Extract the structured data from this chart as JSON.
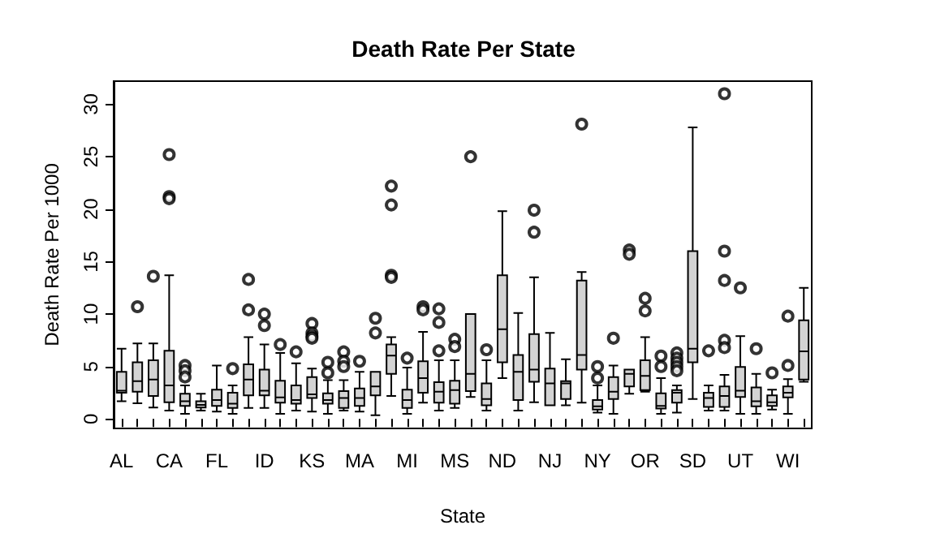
{
  "chart_data": {
    "type": "box",
    "title": "Death Rate Per State",
    "xlabel": "State",
    "ylabel": "Death Rate Per 1000",
    "categories": [
      "AL",
      null,
      null,
      "CA",
      null,
      null,
      "FL",
      null,
      null,
      "ID",
      null,
      null,
      "KS",
      null,
      null,
      "MA",
      null,
      null,
      "MI",
      null,
      null,
      "MS",
      null,
      null,
      "ND",
      null,
      null,
      "NJ",
      null,
      null,
      "NY",
      null,
      null,
      "OR",
      null,
      null,
      "SD",
      null,
      null,
      "UT",
      null,
      null,
      "WI",
      null
    ],
    "ylim": [
      -0.9,
      32.2
    ],
    "yticks": [
      0,
      5,
      10,
      15,
      20,
      25,
      30
    ],
    "grid": false,
    "color": "#d3d3d3",
    "marker": "circle",
    "boxes": [
      {
        "low": 1.7,
        "q1": 2.5,
        "median": 2.7,
        "q3": 4.5,
        "high": 6.7
      },
      {
        "low": 1.5,
        "q1": 2.6,
        "median": 3.6,
        "q3": 5.4,
        "high": 7.2,
        "outliers": [
          10.7
        ]
      },
      {
        "low": 1.1,
        "q1": 2.2,
        "median": 3.75,
        "q3": 5.6,
        "high": 7.2,
        "outliers": [
          13.6
        ]
      },
      {
        "low": 0.8,
        "q1": 1.6,
        "median": 3.2,
        "q3": 6.5,
        "high": 13.7,
        "outliers": [
          25.2,
          21.2,
          21.0
        ]
      },
      {
        "low": 0.5,
        "q1": 1.25,
        "median": 1.7,
        "q3": 2.4,
        "high": 3.2,
        "outliers": [
          5.1,
          4.6,
          4.0
        ]
      },
      {
        "low": 0.8,
        "q1": 1.1,
        "median": 1.35,
        "q3": 1.7,
        "high": 2.4
      },
      {
        "low": 0.7,
        "q1": 1.25,
        "median": 1.8,
        "q3": 2.8,
        "high": 5.1
      },
      {
        "low": 0.5,
        "q1": 1.05,
        "median": 1.45,
        "q3": 2.5,
        "high": 3.2,
        "outliers": [
          4.8
        ]
      },
      {
        "low": 1.05,
        "q1": 2.25,
        "median": 3.75,
        "q3": 5.2,
        "high": 7.8,
        "outliers": [
          13.3,
          10.4
        ]
      },
      {
        "low": 1.05,
        "q1": 2.25,
        "median": 2.7,
        "q3": 4.7,
        "high": 7.1,
        "outliers": [
          10.0,
          8.9
        ]
      },
      {
        "low": 0.5,
        "q1": 1.55,
        "median": 2.05,
        "q3": 3.65,
        "high": 6.3,
        "outliers": [
          7.1
        ]
      },
      {
        "low": 0.8,
        "q1": 1.45,
        "median": 1.8,
        "q3": 3.2,
        "high": 5.3,
        "outliers": [
          6.4
        ]
      },
      {
        "low": 0.7,
        "q1": 2.0,
        "median": 2.35,
        "q3": 4.0,
        "high": 4.8,
        "outliers": [
          9.1,
          8.2,
          7.9,
          7.7
        ]
      },
      {
        "low": 0.5,
        "q1": 1.45,
        "median": 1.8,
        "q3": 2.45,
        "high": 3.7,
        "outliers": [
          5.4,
          4.4
        ]
      },
      {
        "low": 0.8,
        "q1": 1.05,
        "median": 2.0,
        "q3": 2.65,
        "high": 3.7,
        "outliers": [
          6.4,
          5.5,
          5.0
        ]
      },
      {
        "low": 0.7,
        "q1": 1.25,
        "median": 2.0,
        "q3": 2.9,
        "high": 4.5,
        "outliers": [
          5.5
        ]
      },
      {
        "low": 0.35,
        "q1": 2.25,
        "median": 3.1,
        "q3": 4.5,
        "high": 4.5,
        "outliers": [
          9.6,
          8.2
        ]
      },
      {
        "low": 2.2,
        "q1": 4.3,
        "median": 6.05,
        "q3": 7.1,
        "high": 7.8,
        "outliers": [
          22.2,
          20.4,
          13.7,
          13.5
        ]
      },
      {
        "low": 0.5,
        "q1": 1.05,
        "median": 1.8,
        "q3": 2.8,
        "high": 4.9,
        "outliers": [
          5.8
        ]
      },
      {
        "low": 1.55,
        "q1": 2.5,
        "median": 3.9,
        "q3": 5.5,
        "high": 8.3,
        "outliers": [
          10.7,
          10.4
        ]
      },
      {
        "low": 0.8,
        "q1": 1.55,
        "median": 2.6,
        "q3": 3.5,
        "high": 5.6,
        "outliers": [
          10.5,
          9.2,
          6.5
        ]
      },
      {
        "low": 1.05,
        "q1": 1.45,
        "median": 2.75,
        "q3": 3.65,
        "high": 5.6,
        "outliers": [
          7.6,
          6.9
        ]
      },
      {
        "low": 2.1,
        "q1": 2.65,
        "median": 4.3,
        "q3": 10.0,
        "high": 10.0,
        "outliers": [
          25.0
        ]
      },
      {
        "low": 0.8,
        "q1": 1.3,
        "median": 1.9,
        "q3": 3.4,
        "high": 5.6,
        "outliers": [
          6.6
        ]
      },
      {
        "low": 3.9,
        "q1": 5.4,
        "median": 8.55,
        "q3": 13.7,
        "high": 19.8
      },
      {
        "low": 0.8,
        "q1": 1.8,
        "median": 4.5,
        "q3": 6.1,
        "high": 10.1
      },
      {
        "low": 1.6,
        "q1": 3.55,
        "median": 4.7,
        "q3": 8.1,
        "high": 13.5,
        "outliers": [
          19.9,
          17.8
        ]
      },
      {
        "low": 1.3,
        "q1": 1.3,
        "median": 3.4,
        "q3": 4.8,
        "high": 8.2
      },
      {
        "low": 1.3,
        "q1": 1.9,
        "median": 3.4,
        "q3": 3.6,
        "high": 5.7
      },
      {
        "low": 1.55,
        "q1": 4.7,
        "median": 6.1,
        "q3": 13.2,
        "high": 14.0,
        "outliers": [
          28.1
        ]
      },
      {
        "low": 0.6,
        "q1": 0.9,
        "median": 1.2,
        "q3": 1.8,
        "high": 3.2,
        "outliers": [
          5.0,
          3.9
        ]
      },
      {
        "low": 0.5,
        "q1": 1.9,
        "median": 2.6,
        "q3": 4.0,
        "high": 5.1,
        "outliers": [
          7.7
        ]
      },
      {
        "low": 2.4,
        "q1": 3.1,
        "median": 4.3,
        "q3": 4.7,
        "high": 4.7,
        "outliers": [
          16.1,
          15.7
        ]
      },
      {
        "low": 2.6,
        "q1": 2.75,
        "median": 4.1,
        "q3": 5.6,
        "high": 7.8,
        "outliers": [
          11.5,
          10.3
        ]
      },
      {
        "low": 0.5,
        "q1": 1.0,
        "median": 1.25,
        "q3": 2.45,
        "high": 3.9,
        "outliers": [
          6.0,
          5.0
        ]
      },
      {
        "low": 0.6,
        "q1": 1.55,
        "median": 2.5,
        "q3": 2.75,
        "high": 3.2,
        "outliers": [
          6.3,
          5.8,
          5.4,
          5.0,
          4.6
        ]
      },
      {
        "low": 1.9,
        "q1": 5.4,
        "median": 6.7,
        "q3": 16.0,
        "high": 27.8
      },
      {
        "low": 0.8,
        "q1": 1.15,
        "median": 2.0,
        "q3": 2.5,
        "high": 3.2,
        "outliers": [
          6.5
        ]
      },
      {
        "low": 0.8,
        "q1": 1.15,
        "median": 2.2,
        "q3": 3.1,
        "high": 4.2,
        "outliers": [
          31.0,
          16.0,
          13.2,
          7.5,
          6.8
        ]
      },
      {
        "low": 0.5,
        "q1": 2.1,
        "median": 2.7,
        "q3": 4.95,
        "high": 7.9,
        "outliers": [
          12.5
        ]
      },
      {
        "low": 0.5,
        "q1": 1.2,
        "median": 1.7,
        "q3": 3.0,
        "high": 4.3,
        "outliers": [
          6.7
        ]
      },
      {
        "low": 0.9,
        "q1": 1.25,
        "median": 1.6,
        "q3": 2.25,
        "high": 2.8,
        "outliers": [
          4.4
        ]
      },
      {
        "low": 0.5,
        "q1": 2.05,
        "median": 2.5,
        "q3": 3.1,
        "high": 3.8,
        "outliers": [
          9.8,
          5.1
        ]
      },
      {
        "low": 3.55,
        "q1": 3.75,
        "median": 6.45,
        "q3": 9.4,
        "high": 12.5
      }
    ]
  }
}
